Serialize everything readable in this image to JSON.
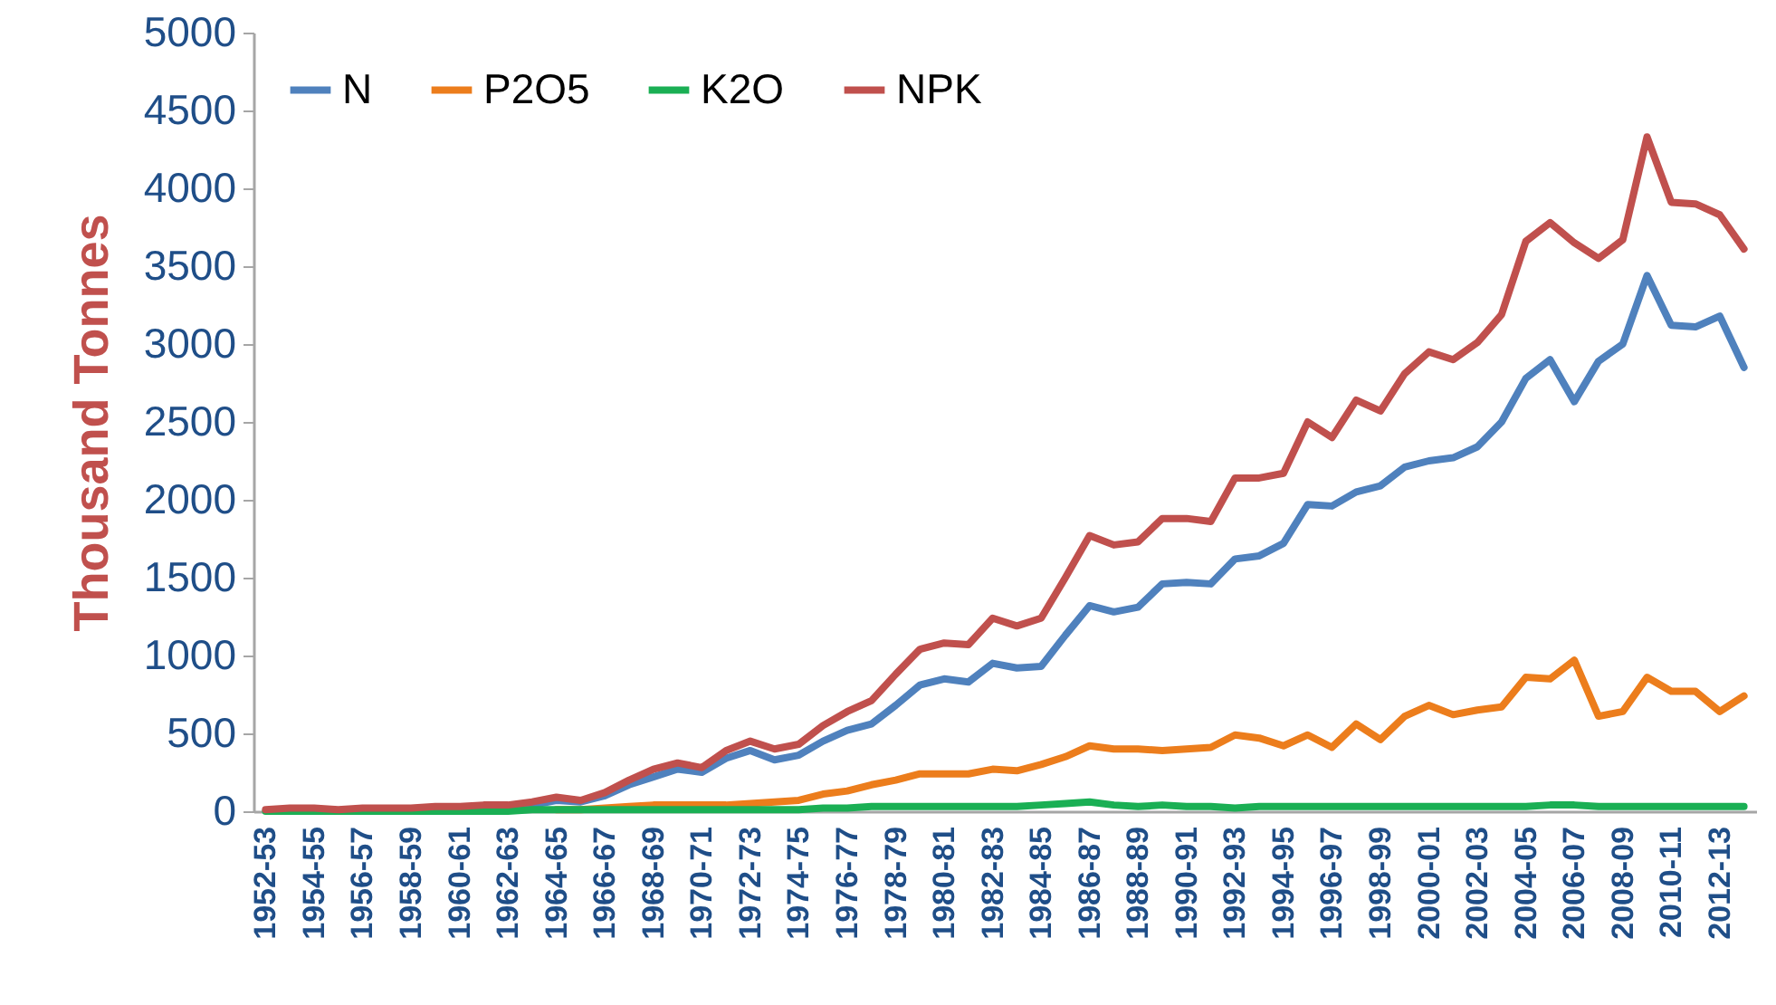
{
  "chart_data": {
    "type": "line",
    "categories": [
      "1952-53",
      null,
      "1954-55",
      null,
      "1956-57",
      null,
      "1958-59",
      null,
      "1960-61",
      null,
      "1962-63",
      null,
      "1964-65",
      null,
      "1966-67",
      null,
      "1968-69",
      null,
      "1970-71",
      null,
      "1972-73",
      null,
      "1974-75",
      null,
      "1976-77",
      null,
      "1978-79",
      null,
      "1980-81",
      null,
      "1982-83",
      null,
      "1984-85",
      null,
      "1986-87",
      null,
      "1988-89",
      null,
      "1990-91",
      null,
      "1992-93",
      null,
      "1994-95",
      null,
      "1996-97",
      null,
      "1998-99",
      null,
      "2000-01",
      null,
      "2002-03",
      null,
      "2004-05",
      null,
      "2006-07",
      null,
      "2008-09",
      null,
      "2010-11",
      null,
      "2012-13",
      null
    ],
    "series": [
      {
        "name": "N",
        "color": "#4f81bd",
        "values": [
          null,
          null,
          null,
          null,
          null,
          null,
          null,
          null,
          null,
          null,
          30,
          40,
          70,
          60,
          100,
          170,
          220,
          270,
          250,
          340,
          390,
          330,
          360,
          450,
          520,
          560,
          680,
          810,
          850,
          830,
          950,
          920,
          930,
          1130,
          1320,
          1280,
          1310,
          1460,
          1470,
          1460,
          1620,
          1640,
          1720,
          1970,
          1960,
          2050,
          2090,
          2210,
          2250,
          2270,
          2340,
          2500,
          2780,
          2900,
          2630,
          2890,
          3000,
          3440,
          3120,
          3110,
          3180,
          2850
        ]
      },
      {
        "name": "P2O5",
        "color": "#ec7d1c",
        "values": [
          null,
          null,
          null,
          null,
          null,
          null,
          null,
          null,
          null,
          null,
          null,
          null,
          10,
          10,
          20,
          30,
          40,
          40,
          40,
          40,
          50,
          60,
          70,
          110,
          130,
          170,
          200,
          240,
          240,
          240,
          270,
          260,
          300,
          350,
          420,
          400,
          400,
          390,
          400,
          410,
          490,
          470,
          420,
          490,
          410,
          560,
          460,
          610,
          680,
          620,
          650,
          670,
          860,
          850,
          970,
          610,
          640,
          860,
          770,
          770,
          640,
          740
        ]
      },
      {
        "name": "K2O",
        "color": "#1aaf54",
        "values": [
          0,
          0,
          0,
          0,
          0,
          0,
          0,
          0,
          0,
          0,
          0,
          10,
          10,
          10,
          10,
          10,
          10,
          10,
          10,
          10,
          10,
          10,
          10,
          20,
          20,
          30,
          30,
          30,
          30,
          30,
          30,
          30,
          40,
          50,
          60,
          40,
          30,
          40,
          30,
          30,
          20,
          30,
          30,
          30,
          30,
          30,
          30,
          30,
          30,
          30,
          30,
          30,
          30,
          40,
          40,
          30,
          30,
          30,
          30,
          30,
          30,
          30
        ]
      },
      {
        "name": "NPK",
        "color": "#c0504d",
        "values": [
          10,
          20,
          20,
          10,
          20,
          20,
          20,
          30,
          30,
          40,
          40,
          60,
          90,
          70,
          120,
          200,
          270,
          310,
          280,
          390,
          450,
          400,
          430,
          550,
          640,
          710,
          880,
          1040,
          1080,
          1070,
          1240,
          1190,
          1240,
          1500,
          1770,
          1710,
          1730,
          1880,
          1880,
          1860,
          2140,
          2140,
          2170,
          2500,
          2400,
          2640,
          2570,
          2810,
          2950,
          2900,
          3010,
          3190,
          3660,
          3780,
          3650,
          3550,
          3670,
          4330,
          3910,
          3900,
          3830,
          3610
        ]
      }
    ],
    "ylabel": "Thousand Tonnes",
    "ylim": [
      0,
      5000
    ],
    "yticks": [
      0,
      500,
      1000,
      1500,
      2000,
      2500,
      3000,
      3500,
      4000,
      4500,
      5000
    ],
    "legend": "top left",
    "grid": false,
    "marker": "none",
    "line_style": "solid"
  }
}
